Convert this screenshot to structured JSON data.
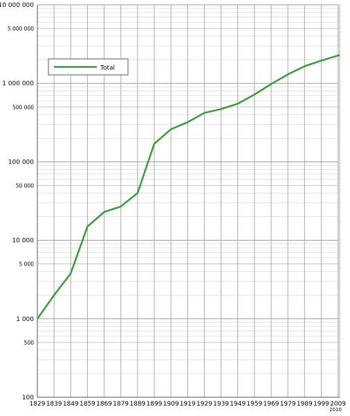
{
  "chart_data": {
    "type": "line",
    "title": "",
    "xlabel": "",
    "ylabel": "",
    "yscale": "log",
    "xlim": [
      1829,
      2010
    ],
    "ylim": [
      100,
      10000000
    ],
    "grid": true,
    "legend_position": "top-left",
    "x_ticks": [
      {
        "value": 1829,
        "label": "1829"
      },
      {
        "value": 1839,
        "label": "1839"
      },
      {
        "value": 1849,
        "label": "1849"
      },
      {
        "value": 1859,
        "label": "1859"
      },
      {
        "value": 1869,
        "label": "1869"
      },
      {
        "value": 1879,
        "label": "1879"
      },
      {
        "value": 1889,
        "label": "1889"
      },
      {
        "value": 1899,
        "label": "1899"
      },
      {
        "value": 1909,
        "label": "1909"
      },
      {
        "value": 1919,
        "label": "1919"
      },
      {
        "value": 1929,
        "label": "1929"
      },
      {
        "value": 1939,
        "label": "1939"
      },
      {
        "value": 1949,
        "label": "1949"
      },
      {
        "value": 1959,
        "label": "1959"
      },
      {
        "value": 1969,
        "label": "1969"
      },
      {
        "value": 1979,
        "label": "1979"
      },
      {
        "value": 1989,
        "label": "1989"
      },
      {
        "value": 1999,
        "label": "1999"
      },
      {
        "value": 2009,
        "label": "2009"
      },
      {
        "value": 2010,
        "label": "2010"
      }
    ],
    "y_ticks": [
      {
        "value": 100,
        "label": "100",
        "major": true
      },
      {
        "value": 500,
        "label": "500",
        "major": false
      },
      {
        "value": 1000,
        "label": "1 000",
        "major": true
      },
      {
        "value": 5000,
        "label": "5 000",
        "major": false
      },
      {
        "value": 10000,
        "label": "10 000",
        "major": true
      },
      {
        "value": 50000,
        "label": "50 000",
        "major": false
      },
      {
        "value": 100000,
        "label": "100 000",
        "major": true
      },
      {
        "value": 500000,
        "label": "500 000",
        "major": false
      },
      {
        "value": 1000000,
        "label": "1 000 000",
        "major": true
      },
      {
        "value": 5000000,
        "label": "5 000 000",
        "major": false
      },
      {
        "value": 10000000,
        "label": "10 000 000",
        "major": true
      }
    ],
    "series": [
      {
        "name": "Total",
        "color": "#3a9a3a",
        "x": [
          1829,
          1839,
          1849,
          1859,
          1869,
          1879,
          1889,
          1899,
          1909,
          1919,
          1929,
          1939,
          1949,
          1959,
          1969,
          1979,
          1989,
          1999,
          2010
        ],
        "y": [
          1000,
          2000,
          3800,
          15000,
          23000,
          27000,
          40000,
          170000,
          260000,
          320000,
          420000,
          470000,
          550000,
          720000,
          980000,
          1300000,
          1650000,
          1950000,
          2300000
        ]
      }
    ]
  }
}
